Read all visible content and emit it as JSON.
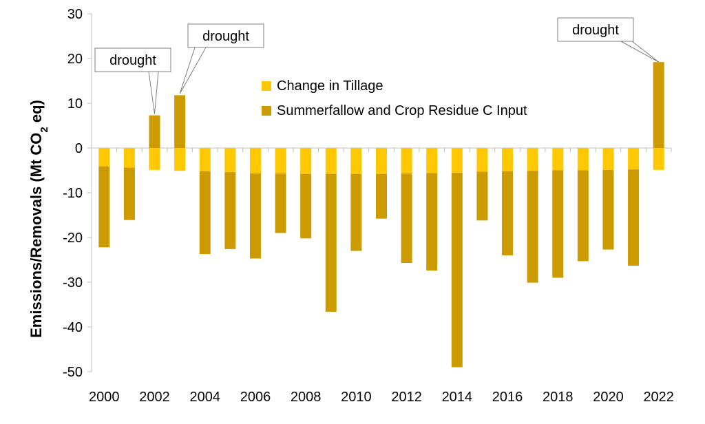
{
  "chart_data": {
    "type": "bar",
    "stacked": true,
    "categories": [
      "2000",
      "2001",
      "2002",
      "2003",
      "2004",
      "2005",
      "2006",
      "2007",
      "2008",
      "2009",
      "2010",
      "2011",
      "2012",
      "2013",
      "2014",
      "2015",
      "2016",
      "2017",
      "2018",
      "2019",
      "2020",
      "2021",
      "2022"
    ],
    "x_tick_labels": [
      "2000",
      "2002",
      "2004",
      "2006",
      "2008",
      "2010",
      "2012",
      "2014",
      "2016",
      "2018",
      "2020",
      "2022"
    ],
    "series": [
      {
        "name": "Change in Tillage",
        "color": "#FFC800",
        "values": [
          -4.1,
          -4.4,
          -4.9,
          -5.1,
          -5.2,
          -5.4,
          -5.7,
          -5.7,
          -5.8,
          -5.8,
          -5.8,
          -5.8,
          -5.7,
          -5.6,
          -5.5,
          -5.3,
          -5.2,
          -5.1,
          -5.0,
          -5.0,
          -4.9,
          -4.8,
          -4.9
        ]
      },
      {
        "name": "Summerfallow and Crop Residue C Input",
        "color": "#CC9B00",
        "values": [
          -18.1,
          -11.7,
          7.3,
          11.8,
          -18.5,
          -17.2,
          -19.0,
          -13.3,
          -14.4,
          -30.8,
          -17.2,
          -10.0,
          -20.0,
          -21.8,
          -43.5,
          -10.9,
          -18.8,
          -25.0,
          -24.0,
          -20.3,
          -17.8,
          -21.5,
          19.2
        ]
      }
    ],
    "ylabel": "Emissions/Removals (Mt CO2 eq)",
    "ylabel_parts": {
      "before": "Emissions/Removals (Mt CO",
      "sub": "2",
      "after": " eq)"
    },
    "ylim": [
      -50,
      30
    ],
    "yticks": [
      30,
      20,
      10,
      0,
      -10,
      -20,
      -30,
      -40,
      -50
    ],
    "grid": false,
    "legend": "upper-center",
    "annotations": [
      {
        "text": "drought",
        "category": "2002"
      },
      {
        "text": "drought",
        "category": "2003"
      },
      {
        "text": "drought",
        "category": "2022"
      }
    ]
  }
}
